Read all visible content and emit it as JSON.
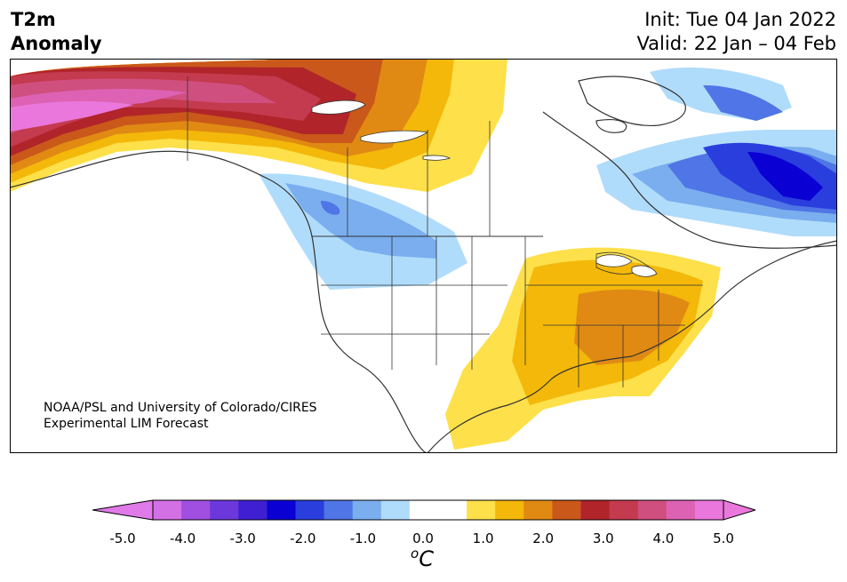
{
  "title": {
    "line1": "T2m",
    "line2": "Anomaly"
  },
  "run": {
    "init": "Init: Tue 04 Jan 2022",
    "valid": "Valid: 22 Jan – 04 Feb"
  },
  "credit": {
    "line1": "NOAA/PSL and University of Colorado/CIRES",
    "line2": "Experimental LIM Forecast"
  },
  "colorbar": {
    "ticks": [
      "-5.0",
      "-4.0",
      "-3.0",
      "-2.0",
      "-1.0",
      "0.0",
      "1.0",
      "2.0",
      "3.0",
      "4.0",
      "5.0"
    ],
    "unit_base": "C",
    "unit_sup": "o",
    "colors": [
      "#d470e6",
      "#a04fe0",
      "#6c38dc",
      "#3f1fd2",
      "#0a00d4",
      "#2a3ede",
      "#4f75e6",
      "#7aaeee",
      "#b0dcfb",
      "#ffffff",
      "#ffffff",
      "#fde04a",
      "#f3b80a",
      "#e08a14",
      "#c9581a",
      "#b0242a",
      "#c43a4e",
      "#cf4f7e",
      "#dd62b3",
      "#ea78dc"
    ],
    "under_color": "#e07ae8",
    "over_color": "#ea78dc"
  },
  "map": {
    "region": "North America",
    "regions": [
      {
        "name": "Alaska",
        "colors": [
          "#ea78dc",
          "#cf4f7e",
          "#c43a4e"
        ]
      },
      {
        "name": "Northwest Canada",
        "colors": [
          "#b0242a",
          "#e08a14",
          "#f3b80a",
          "#fde04a"
        ]
      },
      {
        "name": "Pacific Northwest",
        "colors": [
          "#b0dcfb",
          "#7aaeee",
          "#4f75e6"
        ]
      },
      {
        "name": "Eastern Canada",
        "colors": [
          "#b0dcfb",
          "#4f75e6",
          "#2a3ede",
          "#0a00d4"
        ]
      },
      {
        "name": "Eastern United States",
        "colors": [
          "#fde04a",
          "#f3b80a",
          "#e08a14"
        ]
      }
    ]
  }
}
